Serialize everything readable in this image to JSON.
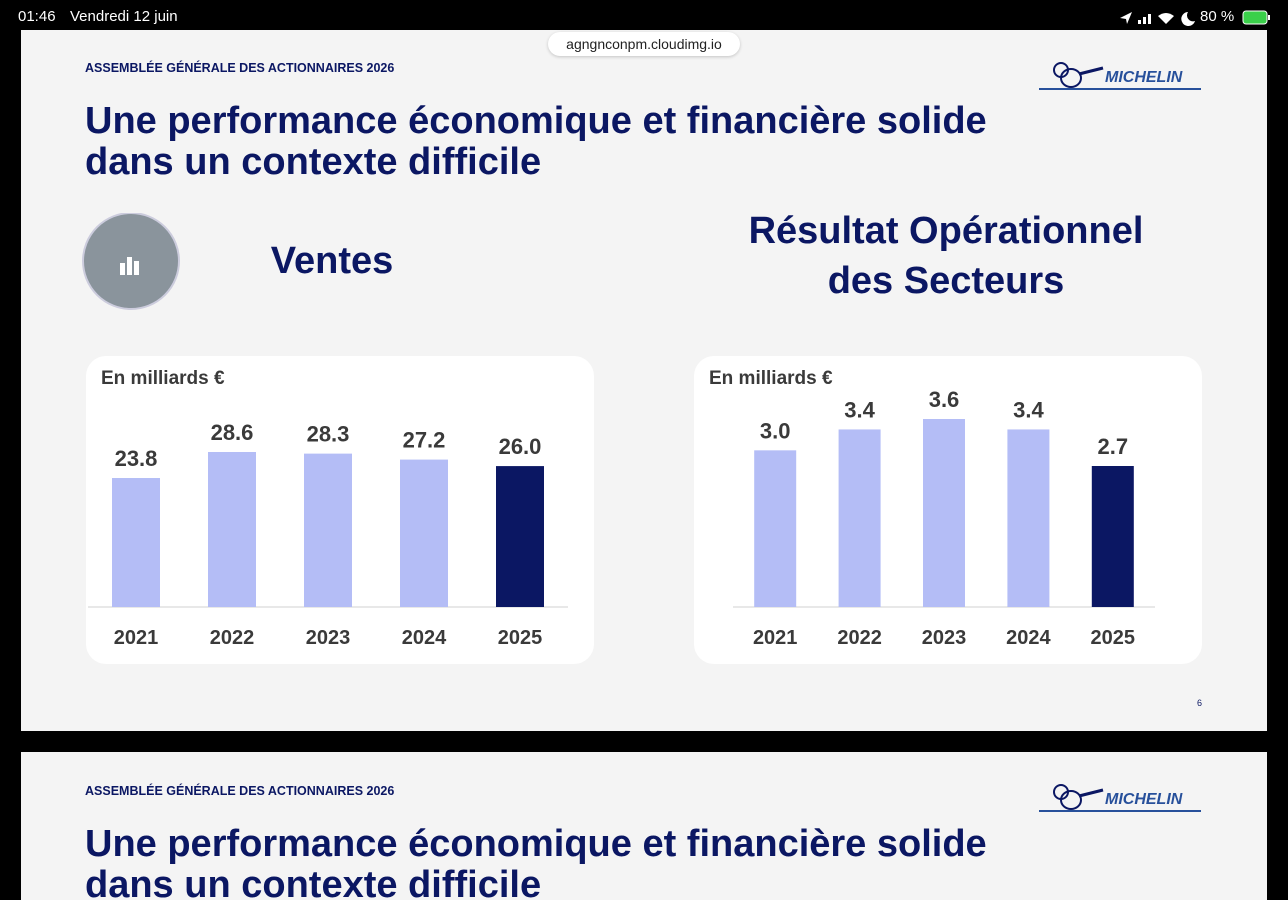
{
  "status_bar": {
    "time": "01:46",
    "date": "Vendredi 12 juin",
    "battery": "80 %"
  },
  "url": "agngnconpm.cloudimg.io",
  "slides": [
    {
      "header": "ASSEMBLÉE GÉNÉRALE DES ACTIONNAIRES 2026",
      "logo": "MICHELIN",
      "title": [
        "Une performance économique et financière solide",
        "dans un contexte difficile"
      ],
      "page_number": "6"
    },
    {
      "header": "ASSEMBLÉE GÉNÉRALE DES ACTIONNAIRES 2026",
      "logo": "MICHELIN",
      "title": [
        "Une performance économique et financière solide",
        "dans un contexte difficile"
      ]
    }
  ],
  "chart_data": [
    {
      "type": "bar",
      "title": [
        "Ventes"
      ],
      "subtitle": "En milliards €",
      "categories": [
        "2021",
        "2022",
        "2023",
        "2024",
        "2025"
      ],
      "values": [
        23.8,
        28.6,
        28.3,
        27.2,
        26.0
      ],
      "value_labels": [
        "23.8",
        "28.6",
        "28.3",
        "27.2",
        "26.0"
      ],
      "colors": [
        "#b4bdf6",
        "#b4bdf6",
        "#b4bdf6",
        "#b4bdf6",
        "#0b1763"
      ]
    },
    {
      "type": "bar",
      "title": [
        "Résultat Opérationnel",
        "des Secteurs"
      ],
      "subtitle": "En milliards €",
      "categories": [
        "2021",
        "2022",
        "2023",
        "2024",
        "2025"
      ],
      "values": [
        3.0,
        3.4,
        3.6,
        3.4,
        2.7
      ],
      "value_labels": [
        "3.0",
        "3.4",
        "3.6",
        "3.4",
        "2.7"
      ],
      "colors": [
        "#b4bdf6",
        "#b4bdf6",
        "#b4bdf6",
        "#b4bdf6",
        "#0b1763"
      ]
    }
  ]
}
